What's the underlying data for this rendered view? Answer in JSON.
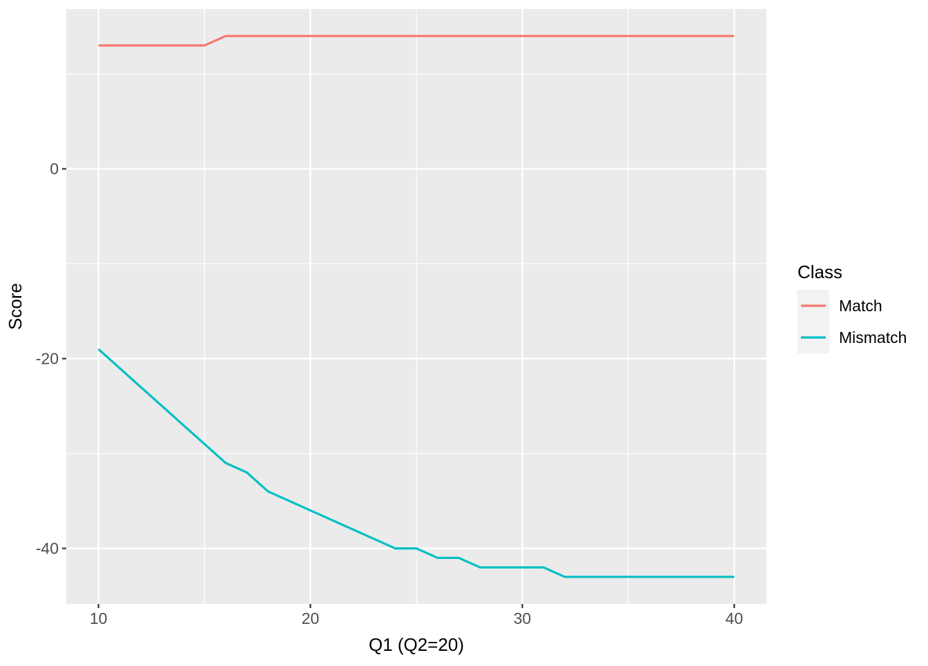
{
  "chart_data": {
    "type": "line",
    "title": "",
    "xlabel": "Q1 (Q2=20)",
    "ylabel": "Score",
    "x": [
      10,
      11,
      12,
      13,
      14,
      15,
      16,
      17,
      18,
      19,
      20,
      21,
      22,
      23,
      24,
      25,
      26,
      27,
      28,
      29,
      30,
      31,
      32,
      33,
      34,
      35,
      36,
      37,
      38,
      39,
      40
    ],
    "series": [
      {
        "name": "Match",
        "color": "#F8766D",
        "values": [
          13,
          13,
          13,
          13,
          13,
          13,
          14,
          14,
          14,
          14,
          14,
          14,
          14,
          14,
          14,
          14,
          14,
          14,
          14,
          14,
          14,
          14,
          14,
          14,
          14,
          14,
          14,
          14,
          14,
          14,
          14
        ]
      },
      {
        "name": "Mismatch",
        "color": "#00BFC4",
        "values": [
          -19,
          -21,
          -23,
          -25,
          -27,
          -29,
          -31,
          -32,
          -34,
          -35,
          -36,
          -37,
          -38,
          -39,
          -40,
          -40,
          -41,
          -41,
          -42,
          -42,
          -42,
          -42,
          -43,
          -43,
          -43,
          -43,
          -43,
          -43,
          -43,
          -43,
          -43
        ]
      }
    ],
    "xlim": [
      8.48,
      41.52
    ],
    "ylim": [
      -45.85,
      16.85
    ],
    "x_major_ticks": [
      10,
      20,
      30,
      40
    ],
    "x_minor_ticks": [
      15,
      25,
      35
    ],
    "y_major_ticks": [
      0,
      -20,
      -40
    ],
    "y_minor_ticks": [
      10,
      -10,
      -30
    ],
    "grid": "on",
    "legend": {
      "title": "Class",
      "position": "right"
    }
  },
  "style": {
    "panel_bg": "#EBEBEB",
    "grid_color": "#FFFFFF",
    "legend_key_bg": "#F2F2F2",
    "tick_label_color": "#4D4D4D",
    "tick_mark_color": "#333333",
    "text_color": "#000000"
  }
}
